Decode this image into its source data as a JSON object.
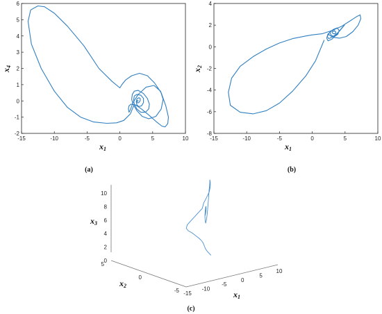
{
  "chart_data": [
    {
      "type": "line",
      "panel": "(a)",
      "xlabel": "x1",
      "ylabel": "x4",
      "xlim": [
        -15,
        10
      ],
      "ylim": [
        -2,
        6
      ],
      "xticks": [
        "-15",
        "-10",
        "-5",
        "0",
        "5",
        "10"
      ],
      "yticks": [
        "-2",
        "-1",
        "0",
        "1",
        "2",
        "3",
        "4",
        "5",
        "6"
      ],
      "color": "#2f7fc1",
      "series": [
        {
          "x": [
            2.2,
            1.6,
            0.6,
            -0.5,
            -2,
            -4,
            -6,
            -8,
            -10,
            -12,
            -13.5,
            -14,
            -13.6,
            -12.5,
            -11.5,
            -10,
            -8,
            -5.5,
            -3.2,
            -1.2,
            0,
            0.3,
            0.9,
            1.8,
            3,
            4.2,
            5.3,
            6.3,
            7,
            7.4,
            7.3,
            6.9,
            6.4,
            5.6,
            4.5,
            3.3,
            2.4,
            1.7,
            1.4,
            1.3,
            1.4,
            1.6,
            2.0,
            2.8,
            4,
            5.2,
            6.2,
            6.6,
            6.3,
            5.5,
            4.4,
            3.4,
            2.6,
            2.0,
            1.8,
            1.9,
            2.2,
            2.8,
            3.6,
            4.2,
            4.5,
            4.4,
            3.9,
            3.2,
            2.6,
            2.2,
            2.1,
            2.2,
            2.6,
            3.2,
            3.6,
            3.6,
            3.3,
            2.9,
            2.6,
            2.5,
            2.6,
            2.9,
            3.1,
            3.1,
            2.9,
            2.7,
            2.6,
            2.7,
            2.8
          ],
          "y": [
            -0.2,
            -0.8,
            -1.2,
            -1.35,
            -1.38,
            -1.3,
            -1.0,
            -0.4,
            0.6,
            2.0,
            3.5,
            4.9,
            5.6,
            5.85,
            5.8,
            5.4,
            4.6,
            3.4,
            2.0,
            1.2,
            0.8,
            1.0,
            1.3,
            1.55,
            1.7,
            1.55,
            1.1,
            0.5,
            -0.3,
            -1.0,
            -1.4,
            -1.6,
            -1.55,
            -1.3,
            -0.9,
            -0.5,
            -0.25,
            -0.2,
            -0.3,
            -0.5,
            -0.7,
            -0.55,
            -0.1,
            0.4,
            0.85,
            0.95,
            0.6,
            0.1,
            -0.5,
            -0.95,
            -1.1,
            -0.95,
            -0.6,
            -0.2,
            0.1,
            0.4,
            0.6,
            0.65,
            0.45,
            0.15,
            -0.2,
            -0.5,
            -0.7,
            -0.7,
            -0.5,
            -0.2,
            0.05,
            0.3,
            0.4,
            0.35,
            0.15,
            -0.1,
            -0.3,
            -0.35,
            -0.25,
            -0.05,
            0.12,
            0.2,
            0.15,
            0.02,
            -0.1,
            -0.12,
            -0.05,
            0.03,
            0.0
          ]
        }
      ]
    },
    {
      "type": "line",
      "panel": "(b)",
      "xlabel": "x1",
      "ylabel": "x2",
      "xlim": [
        -15,
        10
      ],
      "ylim": [
        -8,
        4
      ],
      "xticks": [
        "-15",
        "-10",
        "-5",
        "0",
        "5",
        "10"
      ],
      "yticks": [
        "-8",
        "-6",
        "-4",
        "-2",
        "0",
        "2",
        "4"
      ],
      "color": "#2f7fc1",
      "series": [
        {
          "x": [
            1.8,
            0.5,
            -1,
            -3,
            -5,
            -7,
            -9,
            -11,
            -12.5,
            -12.8,
            -12.3,
            -11,
            -9,
            -7,
            -5,
            -3,
            -1,
            0,
            1.5,
            3,
            4.5,
            5.8,
            6.8,
            7.3,
            7.4,
            7.0,
            6.2,
            5.2,
            4.2,
            3.4,
            2.8,
            2.4,
            2.2,
            2.4,
            3.0,
            3.8,
            4.5,
            4.9,
            4.6,
            3.9,
            3.1,
            2.5,
            2.3,
            2.6,
            3.2,
            3.8,
            4.1,
            3.9,
            3.4,
            2.9,
            2.7,
            2.9,
            3.3,
            3.6,
            3.5,
            3.2,
            3.0,
            3.1,
            3.3
          ],
          "y": [
            0.6,
            -1.3,
            -2.7,
            -4.1,
            -5.2,
            -5.9,
            -6.2,
            -6.05,
            -5.4,
            -4.2,
            -2.9,
            -1.8,
            -0.9,
            -0.2,
            0.35,
            0.75,
            1.0,
            1.1,
            1.2,
            1.5,
            1.9,
            2.4,
            2.8,
            2.95,
            2.6,
            2.0,
            1.4,
            0.95,
            0.8,
            0.85,
            1.0,
            1.2,
            0.8,
            0.55,
            0.7,
            1.2,
            1.7,
            2.0,
            1.8,
            1.3,
            0.9,
            0.75,
            0.95,
            1.3,
            1.6,
            1.75,
            1.5,
            1.15,
            0.95,
            1.05,
            1.3,
            1.5,
            1.55,
            1.35,
            1.2,
            1.2,
            1.35,
            1.45,
            1.4
          ]
        }
      ]
    },
    {
      "type": "line",
      "panel": "(c)",
      "xlabel": "x1",
      "ylabel": "x2",
      "zlabel": "x3",
      "xlim": [
        -15,
        10
      ],
      "ylim": [
        -5,
        5
      ],
      "zlim": [
        0,
        10
      ],
      "xticks": [
        "-15",
        "-10",
        "-5",
        "0",
        "5",
        "10"
      ],
      "yticks": [
        "-5",
        "0",
        "5"
      ],
      "zticks": [
        "0",
        "2",
        "4",
        "6",
        "8",
        "10"
      ],
      "color": "#4a90d0",
      "series": [
        {
          "x": [
            2,
            0,
            -2,
            -4,
            -6,
            -8,
            -10,
            -11.5,
            -12.5,
            -13,
            -12.5,
            -11,
            -8,
            -5,
            -2,
            0,
            2,
            4,
            5.5,
            6.5,
            7,
            6.8,
            6,
            5,
            4,
            3.2,
            2.8,
            2.6,
            2.7,
            3.0,
            3.3,
            3.2,
            2.9,
            2.7,
            2.8,
            3.0,
            3.1,
            2.9,
            2.8,
            2.9
          ],
          "y": [
            0,
            -0.5,
            -1.2,
            -2,
            -2.8,
            -3.5,
            -4.2,
            -4.5,
            -4.6,
            -4.3,
            -3.8,
            -3.2,
            -2.4,
            -1.6,
            -0.8,
            0,
            0.6,
            1.2,
            1.8,
            2.3,
            2.6,
            2.5,
            2.2,
            1.8,
            1.4,
            1.1,
            1.0,
            1.0,
            1.1,
            1.3,
            1.4,
            1.3,
            1.1,
            1.0,
            1.1,
            1.25,
            1.3,
            1.2,
            1.1,
            1.15
          ],
          "z": [
            0.5,
            1.5,
            2.5,
            3.6,
            4.6,
            5.5,
            6.3,
            7.0,
            7.5,
            7.8,
            7.9,
            8.0,
            8.1,
            8.2,
            8.3,
            8.5,
            8.8,
            9.2,
            9.6,
            9.9,
            10.0,
            9.6,
            8.8,
            7.8,
            6.8,
            5.9,
            5.2,
            4.8,
            5.0,
            5.6,
            6.4,
            7.0,
            7.2,
            6.8,
            6.2,
            5.8,
            6.0,
            6.4,
            6.6,
            6.3
          ]
        }
      ]
    }
  ]
}
